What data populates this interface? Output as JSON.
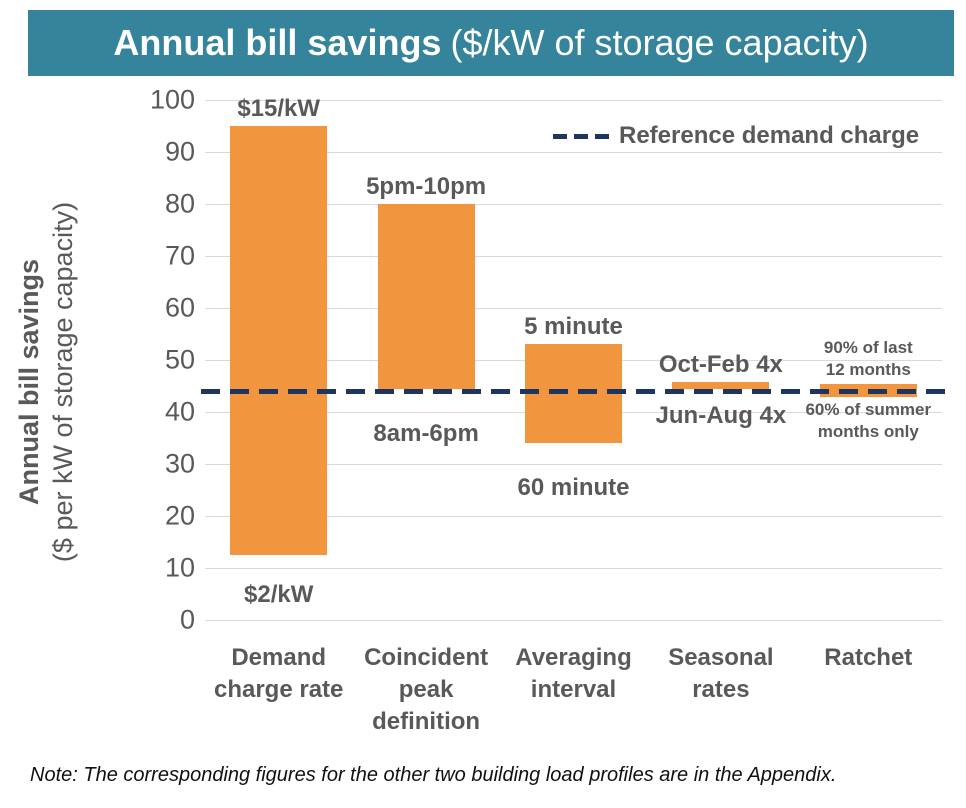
{
  "header": {
    "title_bold": "Annual bill savings",
    "title_rest": "($/kW of storage capacity)",
    "bg_color": "#35849B",
    "text_color": "#FFFFFF"
  },
  "y_axis": {
    "title_line1": "Annual bill savings",
    "title_line2": "($ per kW of storage capacity)"
  },
  "legend": {
    "label": "Reference demand charge"
  },
  "note": "Note: The corresponding figures for the other two building load profiles are in the Appendix.",
  "colors": {
    "banner_teal": "#35849B",
    "bar_orange": "#F2953F",
    "reference_navy": "#1E3560",
    "text_gray": "#595959",
    "gridline_gray": "#D9D9D9"
  },
  "chart_data": {
    "type": "bar",
    "subtype": "floating-range-columns",
    "title": "Annual bill savings ($/kW of storage capacity)",
    "ylabel": "Annual bill savings ($ per kW of storage capacity)",
    "xlabel": "",
    "ylim": [
      0,
      100
    ],
    "ytick_step": 10,
    "grid": true,
    "bar_color": "#F2953F",
    "legend_position": "top-right",
    "categories": [
      "Demand charge rate",
      "Coincident peak definition",
      "Averaging interval",
      "Seasonal rates",
      "Ratchet"
    ],
    "category_label_lines": [
      [
        "Demand",
        "charge rate"
      ],
      [
        "Coincident",
        "peak",
        "definition"
      ],
      [
        "Averaging",
        "interval"
      ],
      [
        "Seasonal",
        "rates"
      ],
      [
        "Ratchet"
      ]
    ],
    "series": [
      {
        "name": "Annual bill savings range",
        "ranges_low": [
          12.5,
          44.5,
          34,
          44.5,
          42.8
        ],
        "ranges_high": [
          95,
          80,
          53,
          45.7,
          45.4
        ]
      }
    ],
    "bar_labels_top": [
      [
        "$15/kW"
      ],
      [
        "5pm-10pm"
      ],
      [
        "5 minute"
      ],
      [
        "Oct-Feb 4x"
      ],
      [
        "90% of last",
        "12 months"
      ]
    ],
    "bar_labels_bottom": [
      [
        "$2/kW"
      ],
      [
        "8am-6pm"
      ],
      [
        "60 minute"
      ],
      [
        "Jun-Aug 4x"
      ],
      [
        "60% of summer",
        "months only"
      ]
    ],
    "bar_label_small": [
      false,
      false,
      false,
      false,
      true
    ],
    "reference_line": {
      "value": 44,
      "label": "Reference demand charge",
      "color": "#1E3560",
      "style": "dashed"
    }
  }
}
